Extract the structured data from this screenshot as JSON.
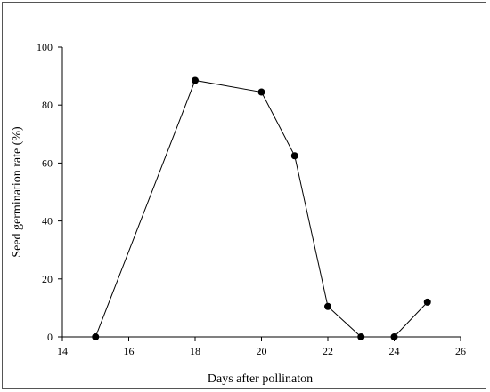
{
  "chart_data": {
    "type": "line",
    "title": "",
    "xlabel": "Days after pollinaton",
    "ylabel": "Seed germination rate (%)",
    "xlim": [
      14,
      26
    ],
    "ylim": [
      0,
      100
    ],
    "xticks": [
      14,
      16,
      18,
      20,
      22,
      24,
      26
    ],
    "yticks": [
      0,
      20,
      40,
      60,
      80,
      100
    ],
    "grid": false,
    "legend": "none",
    "series": [
      {
        "x": [
          15,
          18,
          20,
          21,
          22,
          23,
          24,
          25
        ],
        "y": [
          0,
          88.5,
          84.5,
          62.5,
          10.5,
          0,
          0,
          12
        ],
        "marker": "filled-circle",
        "color": "#000000"
      }
    ]
  }
}
